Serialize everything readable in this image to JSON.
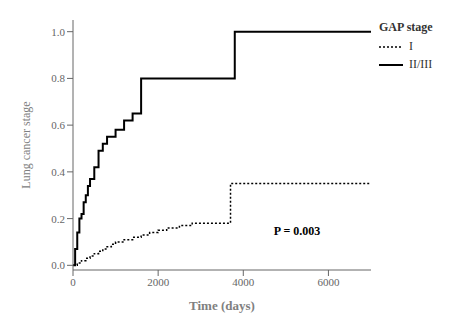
{
  "chart_data": {
    "type": "line",
    "xlabel": "Time (days)",
    "ylabel": "Lung cancer stage",
    "xlim": [
      0,
      7000
    ],
    "ylim": [
      -0.02,
      1.05
    ],
    "xticks": [
      0,
      2000,
      4000,
      6000
    ],
    "yticks": [
      {
        "value": 0.0,
        "label": "0.0"
      },
      {
        "value": 0.2,
        "label": "0.2"
      },
      {
        "value": 0.4,
        "label": "0.4"
      },
      {
        "value": 0.6,
        "label": "0.6"
      },
      {
        "value": 0.8,
        "label": "0.8"
      },
      {
        "value": 1.0,
        "label": "1.0"
      }
    ],
    "grid": false,
    "legend": "right",
    "legend_title": "GAP stage",
    "annotations": [
      {
        "text": "P = 0.003",
        "x": 4600,
        "y": 0.15
      }
    ],
    "series": [
      {
        "name": "I",
        "color": "#000000",
        "line_style": "dotted",
        "x": [
          0,
          100,
          200,
          300,
          400,
          500,
          600,
          700,
          800,
          900,
          1000,
          1200,
          1400,
          1600,
          1800,
          2000,
          2200,
          2500,
          2800,
          3700,
          3800,
          7000
        ],
        "values": [
          0.0,
          0.01,
          0.02,
          0.03,
          0.04,
          0.05,
          0.06,
          0.07,
          0.08,
          0.09,
          0.1,
          0.11,
          0.12,
          0.13,
          0.14,
          0.15,
          0.16,
          0.17,
          0.18,
          0.35,
          0.35,
          0.35
        ]
      },
      {
        "name": "II/III",
        "color": "#000000",
        "line_style": "solid",
        "x": [
          0,
          50,
          100,
          150,
          200,
          250,
          300,
          350,
          400,
          500,
          600,
          700,
          800,
          1000,
          1200,
          1400,
          1600,
          2000,
          2200,
          2500,
          3800,
          3900,
          7000
        ],
        "values": [
          0.0,
          0.07,
          0.14,
          0.2,
          0.22,
          0.27,
          0.3,
          0.34,
          0.37,
          0.42,
          0.49,
          0.52,
          0.55,
          0.58,
          0.62,
          0.65,
          0.8,
          0.8,
          0.8,
          0.8,
          1.0,
          1.0,
          1.0
        ]
      }
    ]
  }
}
